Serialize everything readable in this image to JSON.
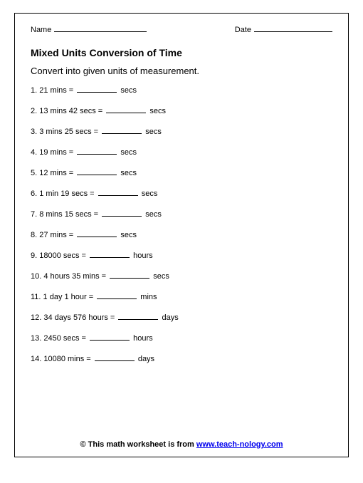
{
  "header": {
    "name_label": "Name",
    "date_label": "Date"
  },
  "title": "Mixed Units Conversion of Time",
  "instruction": "Convert into given units of measurement.",
  "problems": [
    {
      "num": "1.",
      "left": "21 mins =",
      "right": "secs"
    },
    {
      "num": "2.",
      "left": "13 mins 42 secs =",
      "right": "secs"
    },
    {
      "num": "3.",
      "left": "3 mins 25 secs =",
      "right": "secs"
    },
    {
      "num": "4.",
      "left": "19 mins =",
      "right": "secs"
    },
    {
      "num": "5.",
      "left": "12 mins =",
      "right": "secs"
    },
    {
      "num": "6.",
      "left": "1 min 19 secs =",
      "right": "secs"
    },
    {
      "num": "7.",
      "left": "8 mins 15 secs =",
      "right": "secs"
    },
    {
      "num": "8.",
      "left": "27 mins =",
      "right": "secs"
    },
    {
      "num": "9.",
      "left": "18000 secs =",
      "right": "hours"
    },
    {
      "num": "10.",
      "left": "4 hours 35 mins =",
      "right": "secs"
    },
    {
      "num": "11.",
      "left": "1 day 1 hour =",
      "right": "mins"
    },
    {
      "num": "12.",
      "left": "34 days 576 hours =",
      "right": "days"
    },
    {
      "num": "13.",
      "left": "2450 secs =",
      "right": "hours"
    },
    {
      "num": "14.",
      "left": "10080 mins =",
      "right": "days"
    }
  ],
  "footer": {
    "prefix": "© This math worksheet is from ",
    "link_text": "www.teach-nology.com"
  }
}
